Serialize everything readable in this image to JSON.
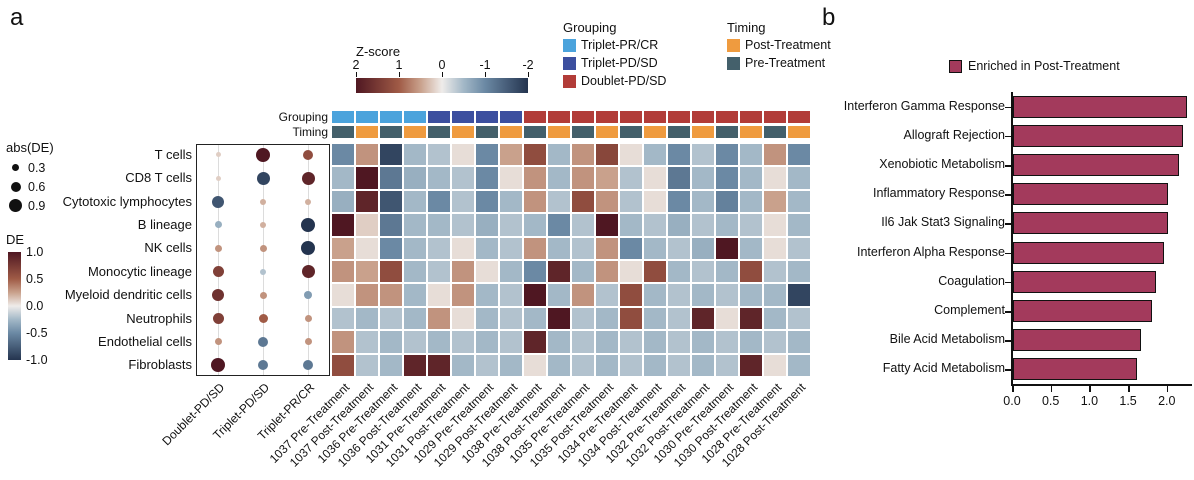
{
  "panels": {
    "a": "a",
    "b": "b"
  },
  "legends": {
    "zscore": {
      "title": "Z-score",
      "ticks": [
        "2",
        "1",
        "0",
        "-1",
        "-2"
      ]
    },
    "grouping": {
      "title": "Grouping",
      "items": [
        {
          "label": "Triplet-PR/CR",
          "color": "#4ba3dc"
        },
        {
          "label": "Triplet-PD/SD",
          "color": "#3c4f9f"
        },
        {
          "label": "Doublet-PD/SD",
          "color": "#b23c38"
        }
      ]
    },
    "timing": {
      "title": "Timing",
      "items": [
        {
          "label": "Post-Treatment",
          "color": "#ef9b3f"
        },
        {
          "label": "Pre-Treatment",
          "color": "#44606b"
        }
      ]
    },
    "abs_de": {
      "title": "abs(DE)",
      "sizes": [
        0.3,
        0.6,
        0.9
      ]
    },
    "de": {
      "title": "DE",
      "ticks": [
        "1.0",
        "0.5",
        "0.0",
        "-0.5",
        "-1.0"
      ]
    }
  },
  "heatmap_labels": {
    "grouping": "Grouping",
    "timing": "Timing"
  },
  "chart_data": [
    {
      "type": "scatter",
      "name": "de-dotplot",
      "rows": [
        "T cells",
        "CD8 T cells",
        "Cytotoxic lymphocytes",
        "B lineage",
        "NK cells",
        "Monocytic lineage",
        "Myeloid dendritic cells",
        "Neutrophils",
        "Endothelial cells",
        "Fibroblasts"
      ],
      "columns": [
        "Doublet-PD/SD",
        "Triplet-PD/SD",
        "Triplet-PR/CR"
      ],
      "color_range": [
        -1.0,
        1.0
      ],
      "size_legend": [
        0.3,
        0.6,
        0.9
      ],
      "de_values": [
        [
          0.1,
          1.0,
          0.6
        ],
        [
          0.1,
          -0.9,
          0.9
        ],
        [
          -0.8,
          0.2,
          0.2
        ],
        [
          -0.3,
          0.2,
          -1.0
        ],
        [
          0.3,
          0.3,
          -1.0
        ],
        [
          0.7,
          -0.2,
          0.9
        ],
        [
          0.8,
          0.3,
          -0.4
        ],
        [
          0.7,
          0.5,
          0.3
        ],
        [
          0.3,
          -0.6,
          0.3
        ],
        [
          1.0,
          -0.6,
          -0.6
        ]
      ]
    },
    {
      "type": "heatmap",
      "name": "zscore-heatmap",
      "zlim": [
        -2,
        2
      ],
      "colorbar_title": "Z-score",
      "colormap_stops": [
        [
          -2,
          "#24344f"
        ],
        [
          -1,
          "#6b89a4"
        ],
        [
          -0.5,
          "#a3b8c7"
        ],
        [
          0,
          "#efecea"
        ],
        [
          0.5,
          "#c9a18c"
        ],
        [
          1,
          "#a05b46"
        ],
        [
          2,
          "#4f1722"
        ]
      ],
      "rows": [
        "T cells",
        "CD8 T cells",
        "Cytotoxic lymphocytes",
        "B lineage",
        "NK cells",
        "Monocytic lineage",
        "Myeloid dendritic cells",
        "Neutrophils",
        "Endothelial cells",
        "Fibroblasts"
      ],
      "columns": [
        "1037 Pre-Treatment",
        "1037 Post-Treatment",
        "1036 Pre-Treatment",
        "1036 Post-Treatment",
        "1031 Pre-Treatment",
        "1031 Post-Treatment",
        "1029 Pre-Treatment",
        "1029 Post-Treatment",
        "1038 Pre-Treatment",
        "1038 Post-Treatment",
        "1035 Pre-Treatment",
        "1035 Post-Treatment",
        "1034 Pre-Treatment",
        "1034 Post-Treatment",
        "1032 Pre-Treatment",
        "1032 Post-Treatment",
        "1030 Pre-Treatment",
        "1030 Post-Treatment",
        "1028 Pre-Treatment",
        "1028 Post-Treatment"
      ],
      "column_grouping": [
        "Triplet-PR/CR",
        "Triplet-PR/CR",
        "Triplet-PR/CR",
        "Triplet-PR/CR",
        "Triplet-PD/SD",
        "Triplet-PD/SD",
        "Triplet-PD/SD",
        "Triplet-PD/SD",
        "Doublet-PD/SD",
        "Doublet-PD/SD",
        "Doublet-PD/SD",
        "Doublet-PD/SD",
        "Doublet-PD/SD",
        "Doublet-PD/SD",
        "Doublet-PD/SD",
        "Doublet-PD/SD",
        "Doublet-PD/SD",
        "Doublet-PD/SD",
        "Doublet-PD/SD",
        "Doublet-PD/SD"
      ],
      "column_timing": [
        "Pre-Treatment",
        "Post-Treatment",
        "Pre-Treatment",
        "Post-Treatment",
        "Pre-Treatment",
        "Post-Treatment",
        "Pre-Treatment",
        "Post-Treatment",
        "Pre-Treatment",
        "Post-Treatment",
        "Pre-Treatment",
        "Post-Treatment",
        "Pre-Treatment",
        "Post-Treatment",
        "Pre-Treatment",
        "Post-Treatment",
        "Pre-Treatment",
        "Post-Treatment",
        "Pre-Treatment",
        "Post-Treatment"
      ],
      "values": [
        [
          -1.0,
          0.6,
          -1.8,
          -0.5,
          -0.4,
          0.1,
          -1.0,
          0.5,
          1.2,
          -0.5,
          0.6,
          1.3,
          0.1,
          -0.5,
          -1.0,
          -0.4,
          -1.0,
          -0.5,
          0.6,
          -1.0
        ],
        [
          -0.5,
          2.0,
          -1.2,
          -0.6,
          -0.5,
          -0.4,
          -1.0,
          0.1,
          0.6,
          -0.5,
          0.6,
          0.5,
          -0.4,
          0.1,
          -1.2,
          -0.5,
          -1.0,
          -0.5,
          0.1,
          -0.5
        ],
        [
          -0.6,
          1.8,
          -1.6,
          -0.5,
          -1.0,
          -0.4,
          -1.0,
          -0.5,
          0.6,
          -0.4,
          1.2,
          0.6,
          -0.4,
          0.1,
          -1.0,
          -0.5,
          -1.1,
          -0.5,
          0.5,
          -0.5
        ],
        [
          2.0,
          0.2,
          -1.2,
          -0.5,
          -0.5,
          -0.4,
          -0.6,
          -0.4,
          -0.5,
          -1.0,
          -0.4,
          2.0,
          -0.5,
          -0.4,
          -0.6,
          -0.4,
          -0.5,
          -0.4,
          0.1,
          -0.5
        ],
        [
          0.5,
          0.1,
          -1.0,
          -0.5,
          -0.4,
          0.1,
          -0.5,
          -0.4,
          0.6,
          -0.5,
          -0.4,
          0.6,
          -1.0,
          -0.5,
          -0.4,
          -0.6,
          2.0,
          -0.5,
          0.1,
          -0.4
        ],
        [
          0.6,
          0.5,
          1.2,
          -0.5,
          -0.4,
          0.6,
          0.1,
          -0.5,
          -1.0,
          1.8,
          -0.5,
          0.6,
          0.1,
          1.2,
          -0.5,
          -0.4,
          -0.5,
          1.2,
          -0.4,
          -0.5
        ],
        [
          0.1,
          0.6,
          0.6,
          -0.5,
          0.1,
          0.6,
          -0.5,
          -0.4,
          2.0,
          -0.5,
          0.6,
          -0.4,
          1.2,
          -0.5,
          -0.4,
          -0.5,
          -0.4,
          -0.5,
          -0.5,
          -1.8
        ],
        [
          -0.4,
          -0.5,
          -0.4,
          -0.5,
          0.6,
          0.1,
          -0.5,
          -0.4,
          -0.5,
          2.0,
          -0.4,
          -0.5,
          1.2,
          -0.5,
          -0.4,
          1.8,
          0.1,
          1.8,
          -0.5,
          -0.4
        ],
        [
          0.6,
          -0.4,
          -0.5,
          -0.4,
          -0.5,
          -0.4,
          -0.5,
          -0.4,
          1.8,
          -0.5,
          -0.4,
          -0.5,
          -0.4,
          -0.5,
          -0.4,
          -0.5,
          -0.4,
          -0.5,
          -0.4,
          -0.5
        ],
        [
          1.2,
          -0.4,
          -0.5,
          1.8,
          1.8,
          -0.5,
          -0.4,
          -0.5,
          0.1,
          -0.5,
          -0.4,
          -0.5,
          -0.4,
          -0.5,
          -0.4,
          -0.5,
          -0.4,
          1.8,
          0.1,
          -0.5
        ]
      ]
    },
    {
      "type": "bar",
      "name": "gsea-bars",
      "orientation": "horizontal",
      "legend": "Enriched in Post-Treatment",
      "bar_color": "#a33a5c",
      "categories": [
        "Interferon Gamma Response",
        "Allograft Rejection",
        "Xenobiotic Metabolism",
        "Inflammatory Response",
        "Il6 Jak Stat3 Signaling",
        "Interferon Alpha Response",
        "Coagulation",
        "Complement",
        "Bile Acid Metabolism",
        "Fatty Acid Metabolism"
      ],
      "values": [
        2.25,
        2.2,
        2.15,
        2.0,
        2.0,
        1.95,
        1.85,
        1.8,
        1.65,
        1.6
      ],
      "xticks": [
        "0.0",
        "0.5",
        "1.0",
        "1.5",
        "2.0"
      ],
      "xlim": [
        0,
        2.3
      ]
    }
  ]
}
